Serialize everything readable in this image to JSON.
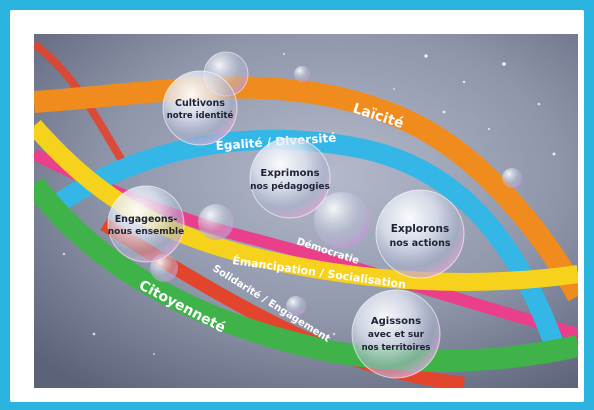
{
  "poster": {
    "ribbons": {
      "laicite": "Laïcité",
      "egalite": "Égalité / Diversité",
      "democratie": "Démocratie",
      "emancipation": "Émancipation / Socialisation",
      "solidarite": "Solidarité / Engagement",
      "citoyennete": "Citoyenneté"
    },
    "bubbles": {
      "cultivons": {
        "line1": "Cultivons",
        "line2": "notre identité"
      },
      "exprimons": {
        "line1": "Exprimons",
        "line2": "nos pédagogies"
      },
      "engageons": {
        "line1": "Engageons-",
        "line2": "nous ensemble"
      },
      "explorons": {
        "line1": "Explorons",
        "line2": "nos actions"
      },
      "agissons": {
        "line1": "Agissons",
        "line2": "avec et sur",
        "line3": "nos territoires"
      }
    },
    "colors": {
      "frame": "#2bb4df",
      "background": "#8f96aa",
      "laicite": "#f08c1e",
      "egalite": "#34b6e6",
      "democratie": "#ea3f8a",
      "emancipation": "#f6d21c",
      "solidarite": "#e2442c",
      "citoyennete": "#3fb34a"
    }
  }
}
